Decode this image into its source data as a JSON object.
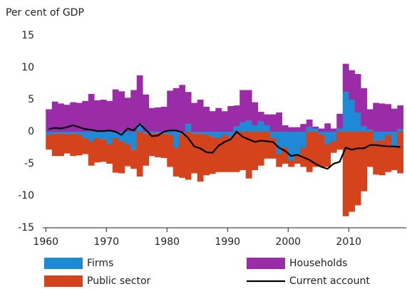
{
  "chart_data": {
    "type": "bar",
    "stacked": true,
    "y_axis_label": "Per cent of GDP",
    "x": [
      1960,
      1961,
      1962,
      1963,
      1964,
      1965,
      1966,
      1967,
      1968,
      1969,
      1970,
      1971,
      1972,
      1973,
      1974,
      1975,
      1976,
      1977,
      1978,
      1979,
      1980,
      1981,
      1982,
      1983,
      1984,
      1985,
      1986,
      1987,
      1988,
      1989,
      1990,
      1991,
      1992,
      1993,
      1994,
      1995,
      1996,
      1997,
      1998,
      1999,
      2000,
      2001,
      2002,
      2003,
      2004,
      2005,
      2006,
      2007,
      2008,
      2009,
      2010,
      2011,
      2012,
      2013,
      2014,
      2015,
      2016,
      2017,
      2018
    ],
    "series": [
      {
        "name": "Firms",
        "color": "#1e8ad6",
        "values": [
          -0.5,
          -0.3,
          -0.3,
          -0.4,
          -0.3,
          -0.5,
          -1.0,
          -1.5,
          -1.0,
          -1.2,
          -2.0,
          -1.0,
          -1.5,
          -2.0,
          -2.8,
          1.2,
          -0.3,
          -0.3,
          -0.2,
          -0.3,
          -0.5,
          -2.5,
          -0.3,
          1.2,
          -0.3,
          -0.3,
          -0.5,
          -0.8,
          -1.0,
          -0.5,
          -0.8,
          0.8,
          1.5,
          1.7,
          1.0,
          1.6,
          1.0,
          -1.0,
          -3.5,
          -2.5,
          -4.5,
          -3.5,
          -2.5,
          0.7,
          0.5,
          -0.5,
          -2.0,
          -1.5,
          0.5,
          6.2,
          5.0,
          3.0,
          0.8,
          0.3,
          -1.5,
          -1.3,
          -0.5,
          -2.5,
          0.4
        ]
      },
      {
        "name": "Households",
        "color": "#9b2ca8",
        "values": [
          3.5,
          4.7,
          4.4,
          4.2,
          4.6,
          4.5,
          4.8,
          5.9,
          4.9,
          5.0,
          4.8,
          6.6,
          6.3,
          5.3,
          6.5,
          7.6,
          5.8,
          3.7,
          3.8,
          3.9,
          6.4,
          6.8,
          7.3,
          5.0,
          4.5,
          5.0,
          3.9,
          3.2,
          3.7,
          3.2,
          4.0,
          3.3,
          5.0,
          4.8,
          3.6,
          1.5,
          1.7,
          2.7,
          3.0,
          1.0,
          0.7,
          0.7,
          1.2,
          1.2,
          0.3,
          0.5,
          1.3,
          0.5,
          2.3,
          4.4,
          4.6,
          6.0,
          6.0,
          3.2,
          4.5,
          4.4,
          4.3,
          3.6,
          3.7
        ]
      },
      {
        "name": "Public sector",
        "color": "#d4431c",
        "values": [
          -2.3,
          -3.5,
          -3.5,
          -3.0,
          -3.5,
          -3.2,
          -2.5,
          -3.8,
          -3.8,
          -3.5,
          -3.0,
          -5.4,
          -5.0,
          -3.4,
          -3.0,
          -7.0,
          -5.0,
          -3.5,
          -3.8,
          -3.8,
          -5.0,
          -4.5,
          -6.9,
          -7.5,
          -6.2,
          -7.5,
          -6.3,
          -5.8,
          -5.3,
          -5.8,
          -5.5,
          -6.3,
          -6.0,
          -7.3,
          -6.0,
          -5.3,
          -4.2,
          -3.2,
          -2.0,
          -2.5,
          -1.0,
          -1.5,
          -3.0,
          -6.3,
          -5.5,
          -5.0,
          -3.5,
          -1.8,
          -2.8,
          -13.2,
          -12.5,
          -11.5,
          -9.3,
          -5.5,
          -5.2,
          -5.5,
          -5.8,
          -3.5,
          -6.5
        ]
      },
      {
        "name": "Current account",
        "color": "#000000",
        "type": "line",
        "values": [
          0.4,
          0.6,
          0.5,
          0.7,
          1.0,
          0.7,
          0.4,
          0.3,
          0.1,
          0.1,
          0.2,
          0.0,
          -0.5,
          0.5,
          0.2,
          1.2,
          0.3,
          -0.7,
          -0.6,
          0.0,
          0.2,
          0.2,
          -0.1,
          -1.0,
          -2.3,
          -2.6,
          -3.2,
          -3.3,
          -2.2,
          -1.6,
          -1.2,
          0.0,
          -0.8,
          -1.2,
          -1.6,
          -1.4,
          -1.5,
          -1.6,
          -2.5,
          -3.0,
          -3.8,
          -3.6,
          -4.0,
          -4.4,
          -5.0,
          -5.5,
          -5.8,
          -5.0,
          -4.7,
          -2.5,
          -2.8,
          -2.6,
          -2.6,
          -2.1,
          -2.1,
          -2.2,
          -2.3,
          -2.3,
          -2.4
        ]
      }
    ],
    "xlim": [
      1959.5,
      2019.5
    ],
    "xticks": [
      1960,
      1970,
      1980,
      1990,
      2000,
      2010
    ],
    "ylim": [
      -15,
      15
    ],
    "yticks": [
      -15,
      -10,
      -5,
      0,
      5,
      10,
      15
    ]
  }
}
